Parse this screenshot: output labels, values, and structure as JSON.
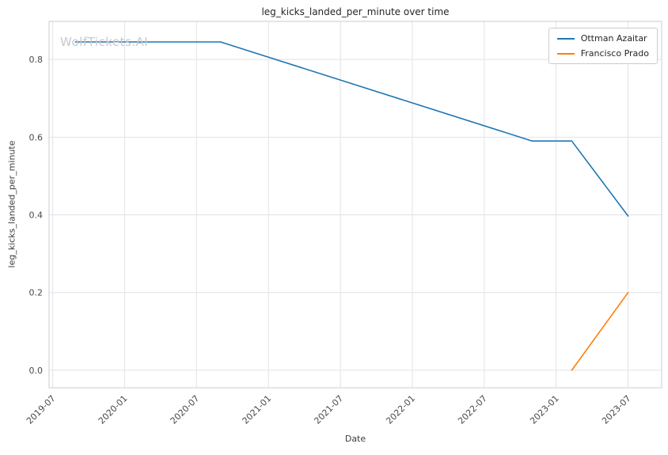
{
  "figure": {
    "title": "leg_kicks_landed_per_minute over time",
    "watermark": "WolfTickets.AI",
    "xlabel": "Date",
    "ylabel": "leg_kicks_landed_per_minute"
  },
  "legend": {
    "items": [
      {
        "label": "Ottman Azaitar",
        "color": "#1f77b4"
      },
      {
        "label": "Francisco Prado",
        "color": "#ff7f0e"
      }
    ]
  },
  "chart_data": {
    "type": "line",
    "title": "leg_kicks_landed_per_minute over time",
    "xlabel": "Date",
    "ylabel": "leg_kicks_landed_per_minute",
    "x_unit": "months since 2019-07",
    "xlim": [
      -0.3,
      50.8
    ],
    "ylim": [
      -0.045,
      0.898
    ],
    "grid": true,
    "legend_position": "upper right",
    "x_ticks": [
      {
        "m": 0,
        "label": "2019-07"
      },
      {
        "m": 6,
        "label": "2020-01"
      },
      {
        "m": 12,
        "label": "2020-07"
      },
      {
        "m": 18,
        "label": "2021-01"
      },
      {
        "m": 24,
        "label": "2021-07"
      },
      {
        "m": 30,
        "label": "2022-01"
      },
      {
        "m": 36,
        "label": "2022-07"
      },
      {
        "m": 42,
        "label": "2023-01"
      },
      {
        "m": 48,
        "label": "2023-07"
      }
    ],
    "y_ticks": [
      {
        "v": 0.0,
        "label": "0.0"
      },
      {
        "v": 0.2,
        "label": "0.2"
      },
      {
        "v": 0.4,
        "label": "0.4"
      },
      {
        "v": 0.6,
        "label": "0.6"
      },
      {
        "v": 0.8,
        "label": "0.8"
      }
    ],
    "series": [
      {
        "name": "Ottman Azaitar",
        "color": "#1f77b4",
        "dates": [
          "2019-08",
          "2020-09",
          "2022-11",
          "2023-02",
          "2023-07"
        ],
        "points": [
          [
            1.9,
            0.845
          ],
          [
            14,
            0.845
          ],
          [
            40,
            0.59
          ],
          [
            43.3,
            0.59
          ],
          [
            48,
            0.397
          ]
        ]
      },
      {
        "name": "Francisco Prado",
        "color": "#ff7f0e",
        "dates": [
          "2023-02",
          "2023-07"
        ],
        "points": [
          [
            43.3,
            0.0
          ],
          [
            48,
            0.2
          ]
        ]
      }
    ],
    "colors": {
      "grid": "#e2e2e8",
      "spine": "#d4d4da",
      "tick_text": "#4a4a4a",
      "title_text": "#262626",
      "watermark": "#c8c8cf",
      "background": "#ffffff"
    }
  }
}
